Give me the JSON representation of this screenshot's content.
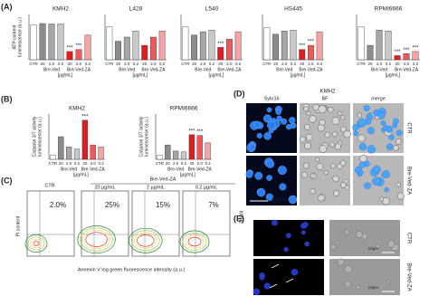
{
  "panel_labels": [
    "(A)",
    "(B)",
    "(C)",
    "(D)",
    "(E)"
  ],
  "chart_data": [
    {
      "type": "bar",
      "title": "KMH2",
      "y_label": [
        "ATP content",
        "luminescence (a.u.)"
      ],
      "categories": [
        "CTR",
        "20",
        "2.0",
        "0.2",
        "20",
        "2.0",
        "0.2"
      ],
      "values": [
        85,
        88,
        87,
        87,
        20,
        25,
        60
      ],
      "colors": [
        "#ffffff",
        "#8c8c8c",
        "#a6a6a6",
        "#c8c8c8",
        "#e8191d",
        "#f0575a",
        "#f5a3a3"
      ],
      "ylim": [
        0,
        110
      ],
      "significance": [
        null,
        null,
        null,
        null,
        "***",
        "***",
        null
      ],
      "groups": [
        "Bre-Ved",
        "Bre-Ved-ZA"
      ],
      "unit": "[µg/mL]"
    },
    {
      "type": "bar",
      "title": "L428",
      "categories": [
        "CTR",
        "20",
        "2.0",
        "0.2",
        "20",
        "2.0",
        "0.2"
      ],
      "values": [
        80,
        45,
        55,
        70,
        35,
        55,
        70
      ],
      "colors": [
        "#ffffff",
        "#8c8c8c",
        "#a6a6a6",
        "#c8c8c8",
        "#e8191d",
        "#f0575a",
        "#f5a3a3"
      ],
      "ylim": [
        0,
        110
      ],
      "significance": [
        null,
        null,
        null,
        null,
        null,
        null,
        null
      ],
      "groups": [
        "Bre-Ved",
        "Bre-Ved-ZA"
      ],
      "unit": "[µg/mL]"
    },
    {
      "type": "bar",
      "title": "L540",
      "categories": [
        "CTR",
        "20",
        "2.0",
        "0.2",
        "20",
        "2.0",
        "0.2"
      ],
      "values": [
        80,
        60,
        68,
        72,
        30,
        50,
        68
      ],
      "colors": [
        "#ffffff",
        "#8c8c8c",
        "#a6a6a6",
        "#c8c8c8",
        "#e8191d",
        "#f0575a",
        "#f5a3a3"
      ],
      "ylim": [
        0,
        110
      ],
      "significance": [
        null,
        null,
        null,
        null,
        "***",
        null,
        null
      ],
      "groups": [
        "Bre-Ved",
        "Bre-Ved-ZA"
      ],
      "unit": "[µg/mL]"
    },
    {
      "type": "bar",
      "title": "HS445",
      "categories": [
        "CTR",
        "20",
        "2.0",
        "0.2",
        "20",
        "2.0",
        "0.2"
      ],
      "values": [
        78,
        62,
        70,
        72,
        25,
        35,
        68
      ],
      "colors": [
        "#ffffff",
        "#8c8c8c",
        "#a6a6a6",
        "#c8c8c8",
        "#e8191d",
        "#f0575a",
        "#f5a3a3"
      ],
      "ylim": [
        0,
        110
      ],
      "significance": [
        null,
        null,
        null,
        null,
        "***",
        "***",
        null
      ],
      "groups": [
        "Bre-Ved",
        "Bre-Ved-ZA"
      ],
      "unit": "[µg/mL]"
    },
    {
      "type": "bar",
      "title": "RPMI6666",
      "categories": [
        "CTR",
        "20",
        "2.0",
        "0.2",
        "20",
        "2.0",
        "0.2"
      ],
      "values": [
        80,
        35,
        72,
        70,
        10,
        15,
        20
      ],
      "colors": [
        "#ffffff",
        "#8c8c8c",
        "#a6a6a6",
        "#c8c8c8",
        "#e8191d",
        "#f0575a",
        "#f5a3a3"
      ],
      "ylim": [
        0,
        110
      ],
      "significance": [
        null,
        null,
        null,
        null,
        "***",
        "***",
        "***"
      ],
      "groups": [
        "Bre-Ved",
        "Bre-Ved-ZA"
      ],
      "unit": "[µg/mL]"
    },
    {
      "type": "bar",
      "title": "KMH2",
      "y_label": [
        "Caspase 3/7 activity",
        "luminescence (a.u.)"
      ],
      "categories": [
        "CTR",
        "20",
        "2.0",
        "0.2",
        "20",
        "2.0",
        "0.2"
      ],
      "values": [
        10,
        55,
        30,
        25,
        95,
        35,
        30
      ],
      "colors": [
        "#ffffff",
        "#8c8c8c",
        "#a6a6a6",
        "#c8c8c8",
        "#e8191d",
        "#f0575a",
        "#f5a3a3"
      ],
      "ylim": [
        0,
        110
      ],
      "significance": [
        null,
        null,
        null,
        null,
        "***",
        null,
        null
      ],
      "groups": [
        "Bre-Ved",
        "Bre-Ved-ZA"
      ],
      "unit": "[µg/mL]"
    },
    {
      "type": "bar",
      "title": "RPMI6666",
      "y_label": [
        "Caspase 3/7 activity",
        "luminescence (a.u.)"
      ],
      "categories": [
        "CTR",
        "20",
        "2.0",
        "0.2",
        "20",
        "2.0",
        "0.2"
      ],
      "values": [
        10,
        35,
        20,
        18,
        60,
        58,
        40
      ],
      "colors": [
        "#ffffff",
        "#8c8c8c",
        "#a6a6a6",
        "#c8c8c8",
        "#e8191d",
        "#f0575a",
        "#f5a3a3"
      ],
      "ylim": [
        0,
        110
      ],
      "significance": [
        null,
        null,
        null,
        null,
        "***",
        "***",
        null
      ],
      "groups": [
        "Bre-Ved",
        "Bre-Ved-ZA"
      ],
      "unit": "[µg/mL]"
    }
  ],
  "panel_c": {
    "control": "CTR",
    "treatment": "Bre-Ved-ZA",
    "doses": [
      "20 µg/mL",
      "2 µg/mL",
      "0.2 µg/mL"
    ],
    "percentages": [
      "2.0%",
      "25%",
      "15%",
      "7%"
    ],
    "cell_line": "KMH2",
    "y_label": "PI content",
    "x_label": "Annexin V log green fluorescence intensity (a.u.)"
  },
  "panel_d": {
    "cell_line": "KMH2",
    "columns": [
      "Syto16",
      "BF",
      "merge"
    ],
    "rows": [
      "CTR",
      "Bre-Ved-ZA"
    ],
    "scale": "100µm"
  },
  "panel_e": {
    "rows": [
      "CTR",
      "Bre-Ved-ZA"
    ],
    "scales": [
      "10µm",
      "10µm"
    ]
  }
}
